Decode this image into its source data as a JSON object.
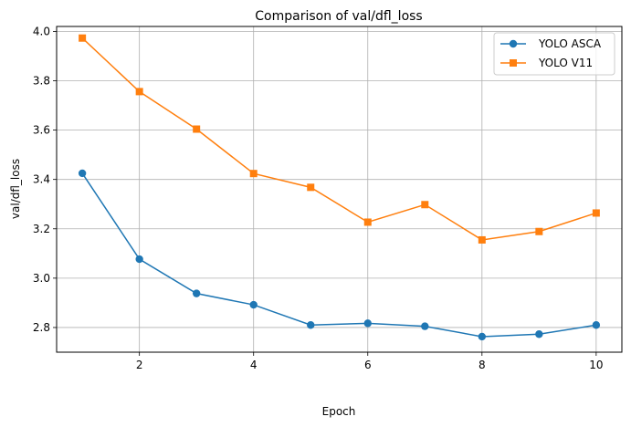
{
  "chart_data": {
    "type": "line",
    "title": "Comparison of val/dfl_loss",
    "xlabel": "Epoch",
    "ylabel": "val/dfl_loss",
    "x": [
      1,
      2,
      3,
      4,
      5,
      6,
      7,
      8,
      9,
      10
    ],
    "xlim": [
      0.55,
      10.45
    ],
    "ylim": [
      2.7,
      4.02
    ],
    "xticks": [
      2,
      4,
      6,
      8,
      10
    ],
    "yticks": [
      2.8,
      3.0,
      3.2,
      3.4,
      3.6,
      3.8,
      4.0
    ],
    "xtick_labels": [
      "2",
      "4",
      "6",
      "8",
      "10"
    ],
    "ytick_labels": [
      "2.8",
      "3.0",
      "3.2",
      "3.4",
      "3.6",
      "3.8",
      "4.0"
    ],
    "grid": true,
    "legend_position": "top-right",
    "series": [
      {
        "name": "YOLO ASCA",
        "color": "#1f77b4",
        "marker": "circle",
        "values": [
          3.425,
          3.077,
          2.938,
          2.892,
          2.81,
          2.817,
          2.805,
          2.763,
          2.773,
          2.81
        ]
      },
      {
        "name": "YOLO V11",
        "color": "#ff7f0e",
        "marker": "square",
        "values": [
          3.973,
          3.756,
          3.604,
          3.424,
          3.368,
          3.227,
          3.298,
          3.155,
          3.189,
          3.264
        ]
      }
    ]
  }
}
